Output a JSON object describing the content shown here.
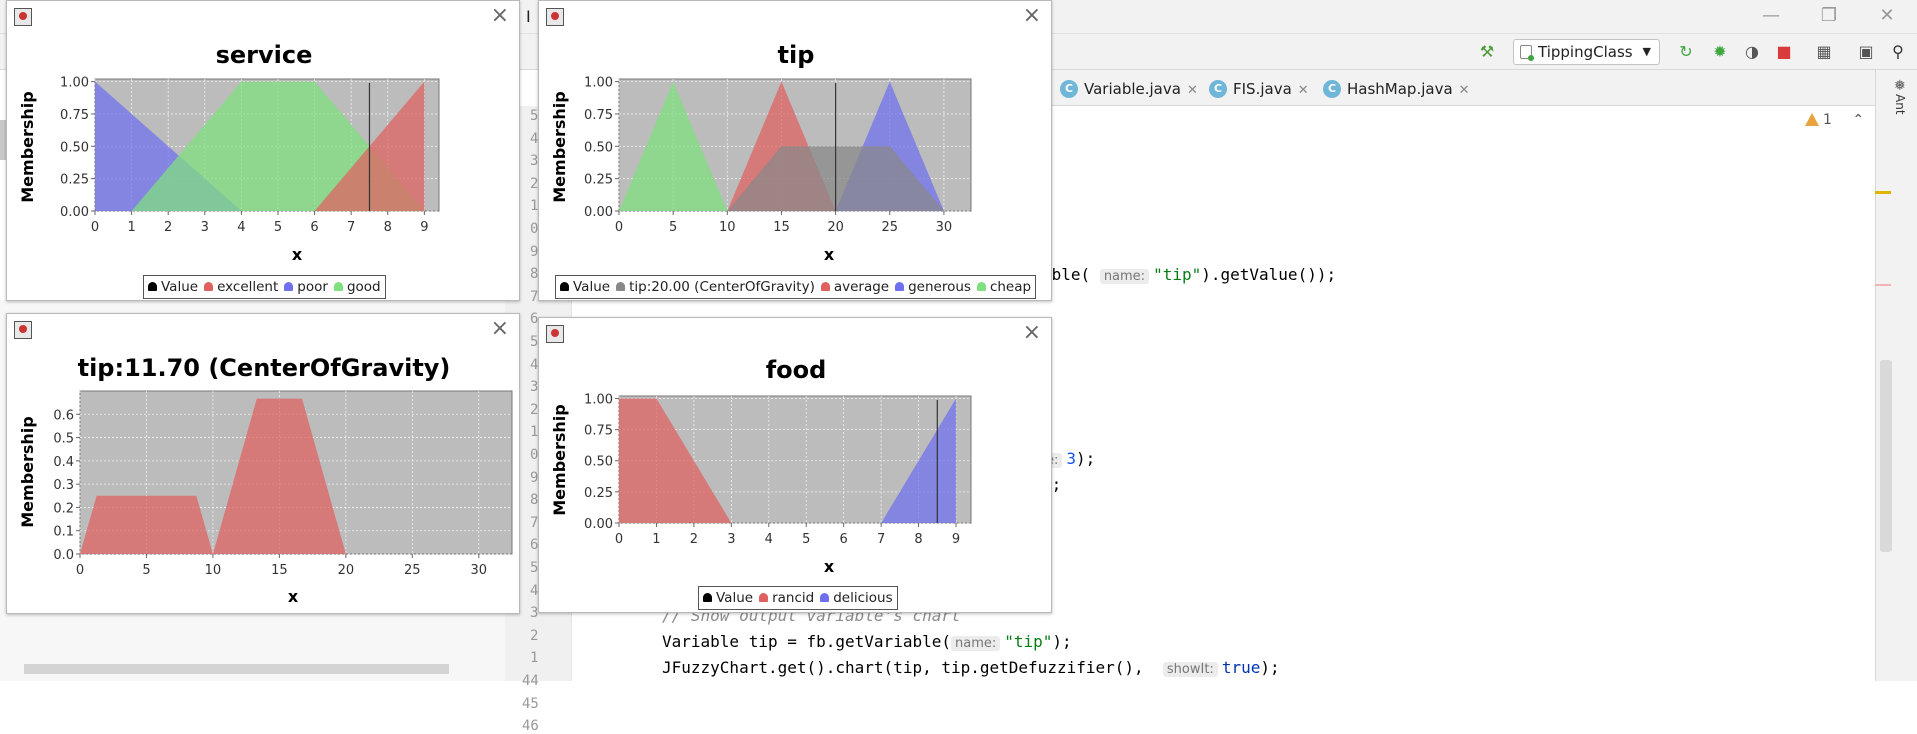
{
  "ide": {
    "run_config": "TippingClass",
    "editor_tabs": [
      "Variable.java",
      "FIS.java",
      "HashMap.java"
    ],
    "tab_icon_letter": "C",
    "side_panel_label": "Ant",
    "warning_count": "1",
    "title_fragment": "I",
    "line_numbers": [
      "5",
      "4",
      "3",
      "2",
      "1",
      "0",
      "9",
      "8",
      "7",
      "6",
      "5",
      "4",
      "3",
      "2",
      "1",
      "0",
      "9",
      "8",
      "7",
      "6",
      "5",
      "4",
      "3",
      "2",
      "1",
      "44",
      "45",
      "46"
    ],
    "code": {
      "line_semicolon": ";",
      "line_get_value_pre": "able(",
      "line_get_value_hint": "name:",
      "line_get_value_str": "\"tip\"",
      "line_get_value_post": ").getValue());",
      "line_e3_hint": "e:",
      "line_e3_num": "3",
      "line_e3_post": ");",
      "line_close": ");",
      "comment": "// Show output variable's chart",
      "line45_pre": "Variable tip = fb.getVariable(",
      "line45_hint": "name:",
      "line45_str": "\"tip\"",
      "line45_post": ");",
      "line46_pre": "JFuzzyChart.get().chart(tip, tip.getDefuzzifier(),",
      "line46_hint": "showIt:",
      "line46_kw": "true",
      "line46_post": ");"
    }
  },
  "colors": {
    "plot_bg": "#bcbcbc",
    "red": "#e06060",
    "blue": "#6f6ff0",
    "green": "#7ee07e",
    "value_line": "#333333",
    "tip_gray": "#888888"
  },
  "chart_data": [
    {
      "id": "service",
      "type": "area",
      "title": "service",
      "xlabel": "x",
      "ylabel": "Membership",
      "xlim": [
        0,
        9.4
      ],
      "ylim": [
        0,
        1.02
      ],
      "xticks": [
        0,
        1,
        2,
        3,
        4,
        5,
        6,
        7,
        8,
        9
      ],
      "yticks": [
        "0.00",
        "0.25",
        "0.50",
        "0.75",
        "1.00"
      ],
      "grid": true,
      "value_line": 7.5,
      "series": [
        {
          "name": "poor",
          "color": "blue",
          "points": [
            [
              0,
              1
            ],
            [
              4,
              0
            ]
          ]
        },
        {
          "name": "good",
          "color": "green",
          "points": [
            [
              1,
              0
            ],
            [
              4,
              1
            ],
            [
              6,
              1
            ],
            [
              9,
              0
            ]
          ]
        },
        {
          "name": "excellent",
          "color": "red",
          "points": [
            [
              6,
              0
            ],
            [
              9,
              1
            ]
          ]
        }
      ],
      "legend": [
        {
          "label": "Value",
          "color": "value_line"
        },
        {
          "label": "excellent",
          "color": "red"
        },
        {
          "label": "poor",
          "color": "blue"
        },
        {
          "label": "good",
          "color": "green"
        }
      ]
    },
    {
      "id": "tip",
      "type": "area",
      "title": "tip",
      "xlabel": "x",
      "ylabel": "Membership",
      "xlim": [
        0,
        32.5
      ],
      "ylim": [
        0,
        1.02
      ],
      "xticks": [
        0,
        5,
        10,
        15,
        20,
        25,
        30
      ],
      "yticks": [
        "0.00",
        "0.25",
        "0.50",
        "0.75",
        "1.00"
      ],
      "grid": true,
      "value_line": 20,
      "series": [
        {
          "name": "cheap",
          "color": "green",
          "points": [
            [
              0,
              0
            ],
            [
              5,
              1
            ],
            [
              10,
              0
            ]
          ]
        },
        {
          "name": "average",
          "color": "red",
          "points": [
            [
              10,
              0
            ],
            [
              15,
              1
            ],
            [
              20,
              0
            ]
          ]
        },
        {
          "name": "generous",
          "color": "blue",
          "points": [
            [
              20,
              0
            ],
            [
              25,
              1
            ],
            [
              30,
              0
            ]
          ]
        },
        {
          "name": "tip:20.00 (CenterOfGravity)",
          "color": "tip_gray",
          "points": [
            [
              10,
              0
            ],
            [
              15,
              0.5
            ],
            [
              25,
              0.5
            ],
            [
              30,
              0
            ]
          ]
        }
      ],
      "legend": [
        {
          "label": "Value",
          "color": "value_line"
        },
        {
          "label": "tip:20.00 (CenterOfGravity)",
          "color": "tip_gray"
        },
        {
          "label": "average",
          "color": "red"
        },
        {
          "label": "generous",
          "color": "blue"
        },
        {
          "label": "cheap",
          "color": "green"
        }
      ]
    },
    {
      "id": "tip_output",
      "type": "area",
      "title": "tip:11.70 (CenterOfGravity)",
      "xlabel": "x",
      "ylabel": "Membership",
      "xlim": [
        0,
        32.5
      ],
      "ylim": [
        0,
        0.7
      ],
      "xticks": [
        0,
        5,
        10,
        15,
        20,
        25,
        30
      ],
      "yticks": [
        "0.0",
        "0.1",
        "0.2",
        "0.3",
        "0.4",
        "0.5",
        "0.6"
      ],
      "grid": true,
      "series": [
        {
          "name": "tip",
          "color": "red",
          "points": [
            [
              0,
              0
            ],
            [
              1.25,
              0.25
            ],
            [
              8.75,
              0.25
            ],
            [
              10,
              0
            ],
            [
              13.3,
              0.667
            ],
            [
              16.7,
              0.667
            ],
            [
              20,
              0
            ]
          ]
        }
      ],
      "legend": []
    },
    {
      "id": "food",
      "type": "area",
      "title": "food",
      "xlabel": "x",
      "ylabel": "Membership",
      "xlim": [
        0,
        9.4
      ],
      "ylim": [
        0,
        1.02
      ],
      "xticks": [
        0,
        1,
        2,
        3,
        4,
        5,
        6,
        7,
        8,
        9
      ],
      "yticks": [
        "0.00",
        "0.25",
        "0.50",
        "0.75",
        "1.00"
      ],
      "grid": true,
      "value_line": 8.5,
      "series": [
        {
          "name": "rancid",
          "color": "red",
          "points": [
            [
              0,
              1
            ],
            [
              1,
              1
            ],
            [
              3,
              0
            ]
          ]
        },
        {
          "name": "delicious",
          "color": "blue",
          "points": [
            [
              7,
              0
            ],
            [
              9,
              1
            ]
          ]
        }
      ],
      "legend": [
        {
          "label": "Value",
          "color": "value_line"
        },
        {
          "label": "rancid",
          "color": "red"
        },
        {
          "label": "delicious",
          "color": "blue"
        }
      ]
    }
  ]
}
